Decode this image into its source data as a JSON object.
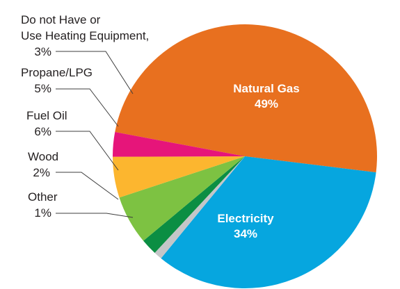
{
  "chart_data": {
    "type": "pie",
    "title": "",
    "slices": [
      {
        "label": "Natural Gas",
        "value": 49,
        "value_label": "49%",
        "color": "#e8701f"
      },
      {
        "label": "Electricity",
        "value": 34,
        "value_label": "34%",
        "color": "#06a6df"
      },
      {
        "label": "Other",
        "value": 1,
        "value_label": "1%",
        "color": "#c4c6c8"
      },
      {
        "label": "Wood",
        "value": 2,
        "value_label": "2%",
        "color": "#0b8e43"
      },
      {
        "label": "Fuel Oil",
        "value": 6,
        "value_label": "6%",
        "color": "#7dc242"
      },
      {
        "label": "Propane/LPG",
        "value": 5,
        "value_label": "5%",
        "color": "#fcb62f"
      },
      {
        "label": "Do not Have or Use Heating Equipment",
        "value": 3,
        "value_label": "3%",
        "color": "#e6157a"
      }
    ],
    "outside_labels": [
      {
        "slice": "Do not Have or Use Heating Equipment",
        "lines": [
          "Do not Have or",
          "Use Heating Equipment,",
          "3%"
        ]
      },
      {
        "slice": "Propane/LPG",
        "lines": [
          "Propane/LPG",
          "5%"
        ]
      },
      {
        "slice": "Fuel Oil",
        "lines": [
          "Fuel Oil",
          "6%"
        ]
      },
      {
        "slice": "Wood",
        "lines": [
          "Wood",
          "2%"
        ]
      },
      {
        "slice": "Other",
        "lines": [
          "Other",
          "1%"
        ]
      }
    ],
    "inside_labels": [
      {
        "slice": "Natural Gas",
        "lines": [
          "Natural Gas",
          "49%"
        ]
      },
      {
        "slice": "Electricity",
        "lines": [
          "Electricity",
          "34%"
        ]
      }
    ]
  }
}
